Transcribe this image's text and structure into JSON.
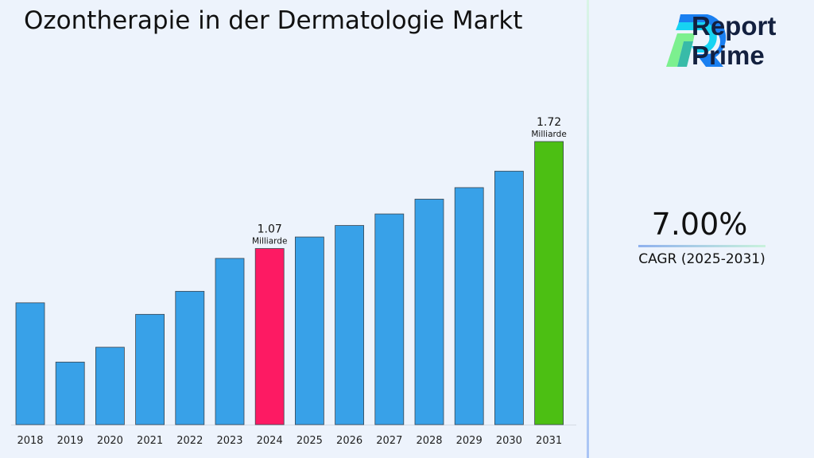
{
  "chart_data": {
    "type": "bar",
    "title": "Ozontherapie in der Dermatologie Markt",
    "categories": [
      "2018",
      "2019",
      "2020",
      "2021",
      "2022",
      "2023",
      "2024",
      "2025",
      "2026",
      "2027",
      "2028",
      "2029",
      "2030",
      "2031"
    ],
    "values": [
      0.74,
      0.38,
      0.47,
      0.67,
      0.81,
      1.01,
      1.07,
      1.14,
      1.21,
      1.28,
      1.37,
      1.44,
      1.54,
      1.72
    ],
    "ylim": [
      0,
      1.72
    ],
    "grid": false,
    "colors": {
      "default": "#38a1e8",
      "highlight_2024": "#fd1a63",
      "highlight_2031": "#4cbf13"
    },
    "annotations": [
      {
        "category": "2024",
        "value": "1.07",
        "unit": "Milliarde"
      },
      {
        "category": "2031",
        "value": "1.72",
        "unit": "Milliarde"
      }
    ]
  },
  "brand": {
    "line1": "Report",
    "line2": "Prime"
  },
  "cagr": {
    "value": "7.00%",
    "label": "CAGR (2025-2031)"
  }
}
